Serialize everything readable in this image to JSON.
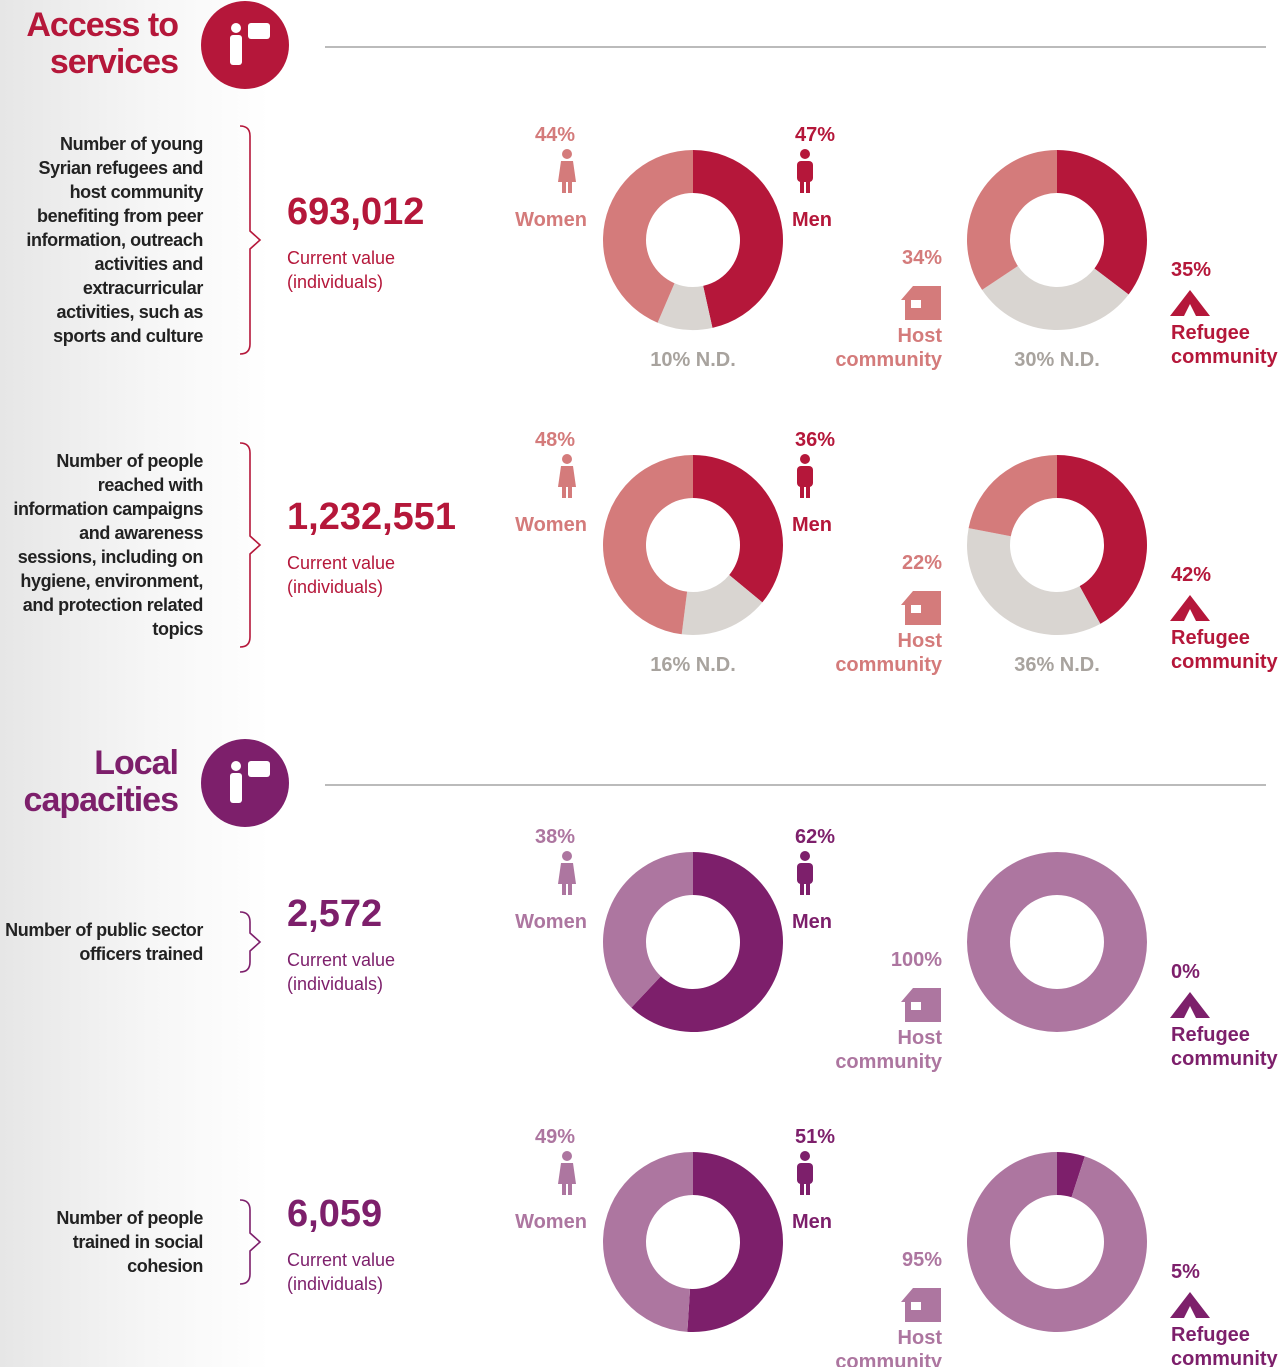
{
  "sections": [
    {
      "title": "Access to services",
      "color": "#b5173a",
      "indicators": [
        {
          "label": "Number of young Syrian refugees and host community benefiting from peer information, outreach activities and extracurricular activities, such as sports and culture",
          "value": "693,012",
          "caption": "Current value (individuals)"
        },
        {
          "label": "Number of people reached with information campaigns and awareness sessions, including on hygiene, environment, and protection related topics",
          "value": "1,232,551",
          "caption": "Current value (individuals)"
        }
      ]
    },
    {
      "title": "Local capacities",
      "color": "#7d1f6b",
      "indicators": [
        {
          "label": "Number of public sector officers trained",
          "value": "2,572",
          "caption": "Current value (individuals)"
        },
        {
          "label": "Number of people trained in social cohesion",
          "value": "6,059",
          "caption": "Current value (individuals)"
        }
      ]
    }
  ],
  "chart_data": [
    {
      "type": "pie",
      "categories": [
        "Men",
        null,
        "Women"
      ],
      "values": [
        47,
        10,
        44
      ],
      "value_labels": [
        "47%",
        "10% N.D.",
        "44%"
      ],
      "colors": [
        "#b5173a",
        "#d9d5d1",
        "#d47b7b"
      ]
    },
    {
      "type": "pie",
      "categories": [
        "Refugee community",
        null,
        "Host community"
      ],
      "values": [
        35,
        30,
        34
      ],
      "value_labels": [
        "35%",
        "30% N.D.",
        "34%"
      ],
      "colors": [
        "#b5173a",
        "#d9d5d1",
        "#d47b7b"
      ]
    },
    {
      "type": "pie",
      "categories": [
        "Men",
        null,
        "Women"
      ],
      "values": [
        36,
        16,
        48
      ],
      "value_labels": [
        "36%",
        "16% N.D.",
        "48%"
      ],
      "colors": [
        "#b5173a",
        "#d9d5d1",
        "#d47b7b"
      ]
    },
    {
      "type": "pie",
      "categories": [
        "Refugee community",
        null,
        "Host community"
      ],
      "values": [
        42,
        36,
        22
      ],
      "value_labels": [
        "42%",
        "36% N.D.",
        "22%"
      ],
      "colors": [
        "#b5173a",
        "#d9d5d1",
        "#d47b7b"
      ]
    },
    {
      "type": "pie",
      "categories": [
        "Men",
        "Women"
      ],
      "values": [
        62,
        38
      ],
      "value_labels": [
        "62%",
        "38%"
      ],
      "colors": [
        "#7d1f6b",
        "#ad76a0"
      ]
    },
    {
      "type": "pie",
      "categories": [
        "Refugee community",
        "Host community"
      ],
      "values": [
        0,
        100
      ],
      "value_labels": [
        "0%",
        "100%"
      ],
      "colors": [
        "#7d1f6b",
        "#ad76a0"
      ]
    },
    {
      "type": "pie",
      "categories": [
        "Men",
        "Women"
      ],
      "values": [
        51,
        49
      ],
      "value_labels": [
        "51%",
        "49%"
      ],
      "colors": [
        "#7d1f6b",
        "#ad76a0"
      ]
    },
    {
      "type": "pie",
      "categories": [
        "Refugee community",
        "Host community"
      ],
      "values": [
        5,
        95
      ],
      "value_labels": [
        "5%",
        "95%"
      ],
      "colors": [
        "#7d1f6b",
        "#ad76a0"
      ]
    }
  ]
}
